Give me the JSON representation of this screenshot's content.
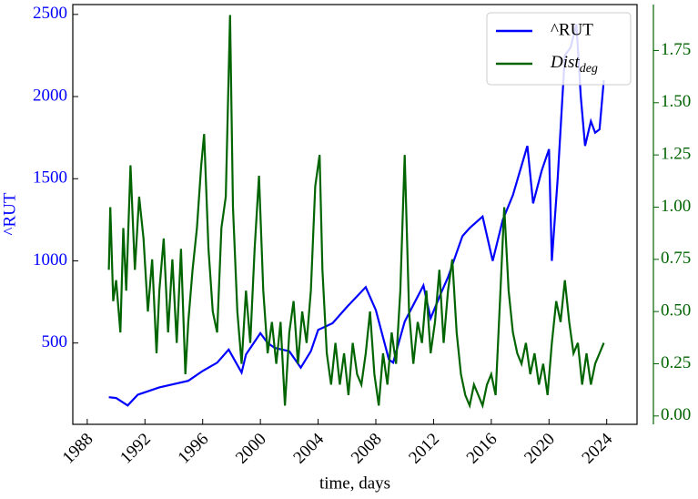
{
  "chart_data": {
    "type": "line",
    "xlabel": "time, days",
    "ylabel": "^RUT",
    "xlim": [
      1987.0,
      2026.1
    ],
    "xticks": [
      1988,
      1992,
      1996,
      2000,
      2004,
      2008,
      2012,
      2016,
      2020,
      2024
    ],
    "ylim": [
      5,
      2560
    ],
    "yticks": [
      500,
      1000,
      1500,
      2000,
      2500
    ],
    "y2lim": [
      -0.04,
      1.97
    ],
    "y2ticks": [
      {
        "value": 0,
        "label": "0.00"
      },
      {
        "value": 0.25,
        "label": "0.25"
      },
      {
        "value": 0.5,
        "label": "0.50"
      },
      {
        "value": 0.75,
        "label": "0.75"
      },
      {
        "value": 1,
        "label": "1.00"
      },
      {
        "value": 1.25,
        "label": "1.25"
      },
      {
        "value": 1.5,
        "label": "1.50"
      },
      {
        "value": 1.75,
        "label": "1.75"
      }
    ],
    "legend": "upper right",
    "series": [
      {
        "name": "^RUT",
        "color": "#0000ff",
        "axis": "y",
        "x": [
          1989.5,
          1990,
          1990.8,
          1991.5,
          1992,
          1993,
          1994,
          1995,
          1996,
          1997,
          1997.8,
          1998.7,
          1999,
          2000,
          2000.5,
          2001,
          2002,
          2002.8,
          2003.5,
          2004,
          2005,
          2006,
          2007.3,
          2008,
          2008.9,
          2009.2,
          2010,
          2011.3,
          2011.8,
          2012.5,
          2013,
          2014,
          2014.5,
          2015.4,
          2016.1,
          2016.8,
          2017.5,
          2018.5,
          2018.9,
          2019.5,
          2020,
          2020.2,
          2020.6,
          2021.1,
          2021.5,
          2021.9,
          2022.2,
          2022.5,
          2022.9,
          2023.2,
          2023.5,
          2023.8
        ],
        "values": [
          170,
          165,
          120,
          185,
          200,
          230,
          250,
          270,
          330,
          380,
          460,
          320,
          430,
          560,
          500,
          470,
          450,
          350,
          450,
          580,
          620,
          720,
          840,
          700,
          400,
          380,
          630,
          850,
          650,
          800,
          900,
          1150,
          1200,
          1270,
          1000,
          1250,
          1400,
          1700,
          1350,
          1550,
          1680,
          1000,
          1500,
          2250,
          2300,
          2440,
          2000,
          1700,
          1850,
          1780,
          1800,
          2100
        ]
      },
      {
        "name": "Dist_deg",
        "color": "#006400",
        "axis": "y2",
        "x": [
          1989.5,
          1989.6,
          1989.8,
          1990,
          1990.3,
          1990.5,
          1990.7,
          1991,
          1991.3,
          1991.6,
          1991.9,
          1992.2,
          1992.5,
          1992.8,
          1993,
          1993.3,
          1993.6,
          1993.9,
          1994.2,
          1994.5,
          1994.8,
          1995,
          1995.3,
          1995.6,
          1995.9,
          1996.1,
          1996.4,
          1996.7,
          1997,
          1997.3,
          1997.6,
          1997.9,
          1998.1,
          1998.4,
          1998.7,
          1999,
          1999.3,
          1999.6,
          1999.9,
          2000.2,
          2000.5,
          2000.8,
          2001.1,
          2001.4,
          2001.7,
          2002,
          2002.3,
          2002.6,
          2002.9,
          2003.2,
          2003.5,
          2003.8,
          2004.1,
          2004.3,
          2004.6,
          2004.9,
          2005.2,
          2005.5,
          2005.8,
          2006.1,
          2006.4,
          2006.7,
          2007,
          2007.3,
          2007.6,
          2007.9,
          2008.2,
          2008.5,
          2008.8,
          2009.1,
          2009.4,
          2009.7,
          2010,
          2010.3,
          2010.6,
          2010.9,
          2011.2,
          2011.5,
          2011.8,
          2012.1,
          2012.4,
          2012.7,
          2013,
          2013.3,
          2013.6,
          2013.9,
          2014.2,
          2014.5,
          2014.8,
          2015.1,
          2015.4,
          2015.7,
          2016,
          2016.3,
          2016.6,
          2016.9,
          2017.2,
          2017.5,
          2017.8,
          2018.1,
          2018.4,
          2018.7,
          2019,
          2019.3,
          2019.6,
          2019.9,
          2020.2,
          2020.5,
          2020.8,
          2021.1,
          2021.4,
          2021.7,
          2022,
          2022.3,
          2022.6,
          2022.9,
          2023.2,
          2023.5,
          2023.8
        ],
        "values": [
          0.7,
          1.0,
          0.55,
          0.65,
          0.4,
          0.9,
          0.6,
          1.2,
          0.7,
          1.05,
          0.85,
          0.5,
          0.75,
          0.3,
          0.6,
          0.85,
          0.4,
          0.75,
          0.35,
          0.8,
          0.2,
          0.45,
          0.7,
          0.9,
          1.2,
          1.35,
          0.8,
          0.5,
          0.4,
          0.9,
          1.05,
          1.92,
          1.0,
          0.5,
          0.25,
          0.6,
          0.35,
          0.8,
          1.15,
          0.6,
          0.3,
          0.45,
          0.25,
          0.45,
          0.05,
          0.4,
          0.55,
          0.25,
          0.5,
          0.35,
          0.6,
          1.1,
          1.25,
          0.7,
          0.3,
          0.15,
          0.35,
          0.15,
          0.3,
          0.1,
          0.35,
          0.2,
          0.15,
          0.3,
          0.5,
          0.2,
          0.05,
          0.3,
          0.15,
          0.4,
          0.25,
          0.6,
          1.25,
          0.5,
          0.25,
          0.45,
          0.35,
          0.6,
          0.3,
          0.45,
          0.7,
          0.35,
          0.6,
          0.75,
          0.4,
          0.2,
          0.1,
          0.05,
          0.15,
          0.1,
          0.05,
          0.15,
          0.2,
          0.1,
          0.55,
          1.0,
          0.6,
          0.4,
          0.3,
          0.25,
          0.35,
          0.2,
          0.3,
          0.15,
          0.25,
          0.1,
          0.35,
          0.55,
          0.45,
          0.65,
          0.45,
          0.3,
          0.35,
          0.15,
          0.3,
          0.15,
          0.25,
          0.3,
          0.35
        ]
      }
    ]
  }
}
